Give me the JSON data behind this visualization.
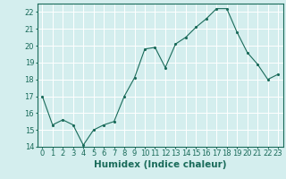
{
  "x": [
    0,
    1,
    2,
    3,
    4,
    5,
    6,
    7,
    8,
    9,
    10,
    11,
    12,
    13,
    14,
    15,
    16,
    17,
    18,
    19,
    20,
    21,
    22,
    23
  ],
  "y": [
    17,
    15.3,
    15.6,
    15.3,
    14.1,
    15.0,
    15.3,
    15.5,
    17.0,
    18.1,
    19.8,
    19.9,
    18.7,
    20.1,
    20.5,
    21.1,
    21.6,
    22.2,
    22.2,
    20.8,
    19.6,
    18.9,
    18.0,
    18.3
  ],
  "line_color": "#1a6b5a",
  "marker_color": "#1a6b5a",
  "bg_color": "#d4eeee",
  "grid_color": "#ffffff",
  "xlabel": "Humidex (Indice chaleur)",
  "ylim": [
    14,
    22.5
  ],
  "xlim": [
    -0.5,
    23.5
  ],
  "yticks": [
    14,
    15,
    16,
    17,
    18,
    19,
    20,
    21,
    22
  ],
  "xticks": [
    0,
    1,
    2,
    3,
    4,
    5,
    6,
    7,
    8,
    9,
    10,
    11,
    12,
    13,
    14,
    15,
    16,
    17,
    18,
    19,
    20,
    21,
    22,
    23
  ],
  "tick_fontsize": 6,
  "xlabel_fontsize": 7.5
}
